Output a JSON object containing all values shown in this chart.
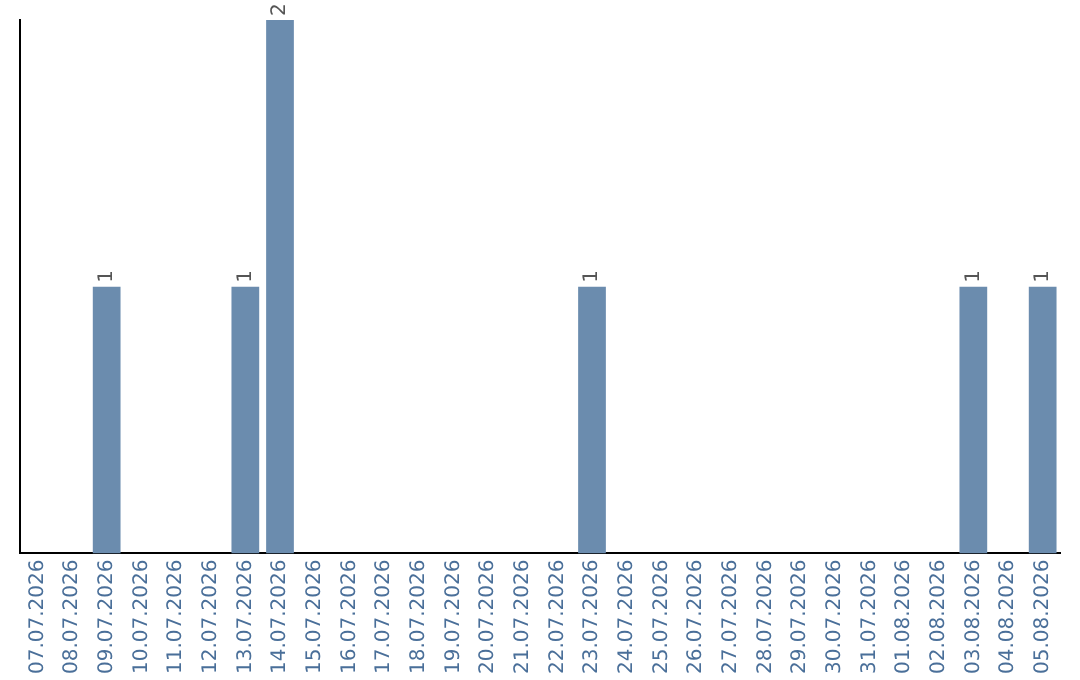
{
  "chart_data": {
    "type": "bar",
    "categories": [
      "07.07.2026",
      "08.07.2026",
      "09.07.2026",
      "10.07.2026",
      "11.07.2026",
      "12.07.2026",
      "13.07.2026",
      "14.07.2026",
      "15.07.2026",
      "16.07.2026",
      "17.07.2026",
      "18.07.2026",
      "19.07.2026",
      "20.07.2026",
      "21.07.2026",
      "22.07.2026",
      "23.07.2026",
      "24.07.2026",
      "25.07.2026",
      "26.07.2026",
      "27.07.2026",
      "28.07.2026",
      "29.07.2026",
      "30.07.2026",
      "31.07.2026",
      "01.08.2026",
      "02.08.2026",
      "03.08.2026",
      "04.08.2026",
      "05.08.2026"
    ],
    "values": [
      0,
      0,
      1,
      0,
      0,
      0,
      1,
      2,
      0,
      0,
      0,
      0,
      0,
      0,
      0,
      0,
      1,
      0,
      0,
      0,
      0,
      0,
      0,
      0,
      0,
      0,
      0,
      1,
      0,
      1
    ],
    "value_labels": [
      null,
      null,
      "1",
      null,
      null,
      null,
      "1",
      "2",
      null,
      null,
      null,
      null,
      null,
      null,
      null,
      null,
      "1",
      null,
      null,
      null,
      null,
      null,
      null,
      null,
      null,
      null,
      null,
      "1",
      null,
      "1"
    ],
    "color": "#6b8cae",
    "grid": false,
    "legend": false
  }
}
